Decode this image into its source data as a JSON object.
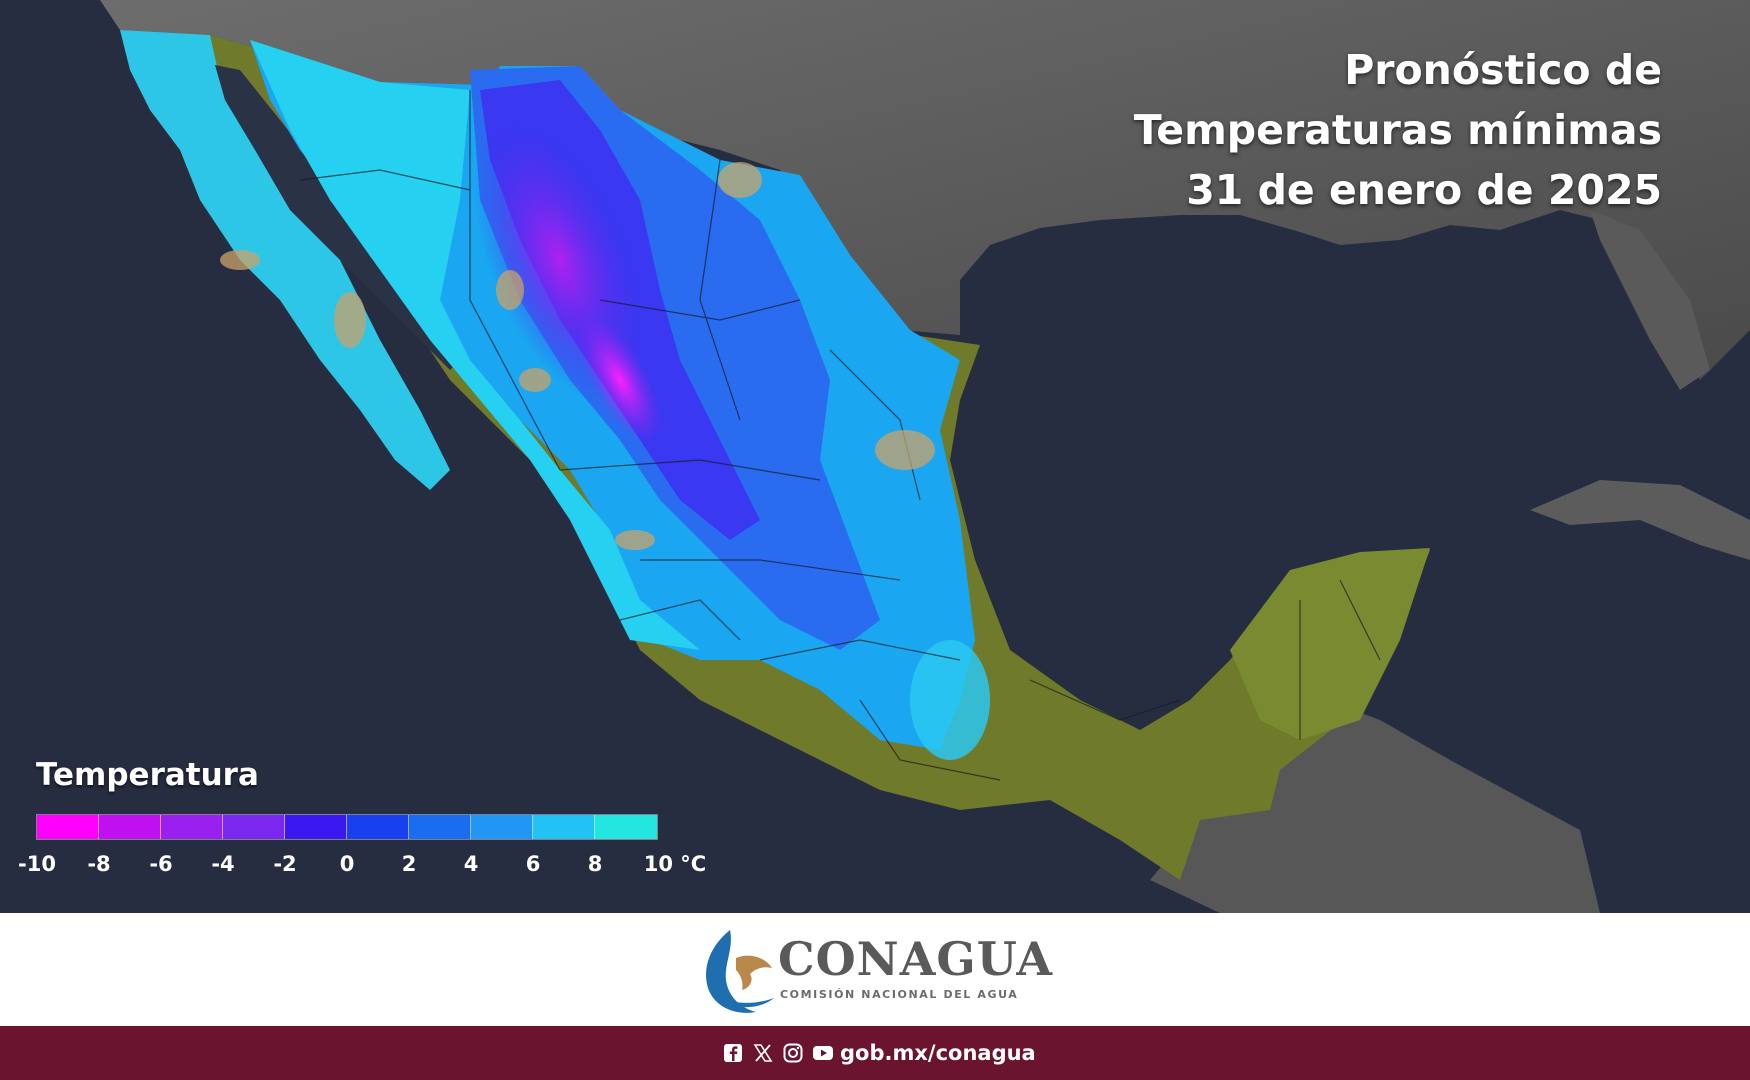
{
  "title": {
    "line1": "Pronóstico de",
    "line2": "Temperaturas mínimas",
    "line3": "31 de enero de 2025"
  },
  "legend": {
    "title": "Temperatura",
    "colors": [
      "#ff00ff",
      "#c010f0",
      "#9a20f0",
      "#7a28f0",
      "#3c18f0",
      "#1840f0",
      "#1a6cf0",
      "#2196f5",
      "#22c2f5",
      "#22e6e0"
    ],
    "ticks": [
      "-10",
      "-8",
      "-6",
      "-4",
      "-2",
      "0",
      "2",
      "4",
      "6",
      "8",
      "10 °C"
    ]
  },
  "footer": {
    "brand": "CONAGUA",
    "brand_sub": "COMISIÓN NACIONAL DEL AGUA",
    "url": "gob.mx/conagua",
    "social_icons": [
      "facebook-icon",
      "x-icon",
      "instagram-icon",
      "youtube-icon"
    ]
  }
}
